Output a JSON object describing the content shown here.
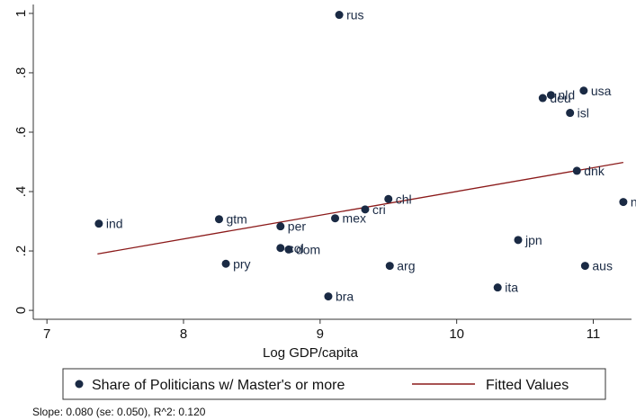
{
  "chart_data": {
    "type": "scatter",
    "xlabel": "Log GDP/capita",
    "ylabel": "",
    "xlim": [
      6.9,
      11.28
    ],
    "ylim": [
      -0.03,
      1.03
    ],
    "xticks": [
      "7",
      "8",
      "9",
      "10",
      "11"
    ],
    "yticks": [
      "0",
      ".2",
      ".4",
      ".6",
      ".8",
      "1"
    ],
    "xtick_values": [
      7,
      8,
      9,
      10,
      11
    ],
    "ytick_values": [
      0,
      0.2,
      0.4,
      0.6,
      0.8,
      1.0
    ],
    "series": [
      {
        "name": "Share of Politicians w/ Master's or more",
        "color": "#1a2a44",
        "points": [
          {
            "label": "rus",
            "x": 9.14,
            "y": 0.995
          },
          {
            "label": "usa",
            "x": 10.93,
            "y": 0.74
          },
          {
            "label": "nld",
            "x": 10.69,
            "y": 0.725
          },
          {
            "label": "deu",
            "x": 10.63,
            "y": 0.715
          },
          {
            "label": "isl",
            "x": 10.83,
            "y": 0.665
          },
          {
            "label": "dnk",
            "x": 10.88,
            "y": 0.47
          },
          {
            "label": "nor",
            "x": 11.22,
            "y": 0.365
          },
          {
            "label": "chl",
            "x": 9.5,
            "y": 0.375
          },
          {
            "label": "cri",
            "x": 9.33,
            "y": 0.34
          },
          {
            "label": "mex",
            "x": 9.11,
            "y": 0.31
          },
          {
            "label": "gtm",
            "x": 8.26,
            "y": 0.307
          },
          {
            "label": "ind",
            "x": 7.38,
            "y": 0.292
          },
          {
            "label": "per",
            "x": 8.71,
            "y": 0.283
          },
          {
            "label": "col",
            "x": 8.71,
            "y": 0.21
          },
          {
            "label": "dom",
            "x": 8.77,
            "y": 0.205
          },
          {
            "label": "jpn",
            "x": 10.45,
            "y": 0.237
          },
          {
            "label": "pry",
            "x": 8.31,
            "y": 0.157
          },
          {
            "label": "arg",
            "x": 9.51,
            "y": 0.15
          },
          {
            "label": "aus",
            "x": 10.94,
            "y": 0.15
          },
          {
            "label": "ita",
            "x": 10.3,
            "y": 0.077
          },
          {
            "label": "bra",
            "x": 9.06,
            "y": 0.047
          }
        ]
      },
      {
        "name": "Fitted Values",
        "color": "#8b1a1a",
        "type": "line",
        "x": [
          7.37,
          11.22
        ],
        "y": [
          0.19,
          0.498
        ]
      }
    ],
    "legend_position": "bottom",
    "legend": {
      "scatter_label": "Share of Politicians w/ Master's or more",
      "line_label": "Fitted Values"
    },
    "note": "Slope: 0.080 (se: 0.050), R^2: 0.120"
  }
}
